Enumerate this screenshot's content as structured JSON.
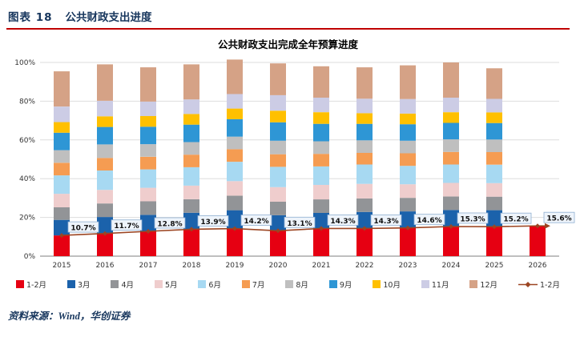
{
  "header": {
    "figure_label": "图表 18",
    "title": "公共财政支出进度"
  },
  "footer": {
    "source": "资料来源：Wind，华创证券"
  },
  "colors": {
    "header_text": "#17365d",
    "header_rule": "#c00000",
    "label_box_fill": "#eef4fb",
    "label_box_border": "#8fafd1"
  },
  "chart_data": {
    "type": "bar",
    "stacked": true,
    "title": "公共财政支出完成全年预算进度",
    "categories": [
      "2015",
      "2016",
      "2017",
      "2018",
      "2019",
      "2020",
      "2021",
      "2022",
      "2023",
      "2024",
      "2025",
      "2026"
    ],
    "series": [
      {
        "name": "1-2月",
        "color": "#e60012",
        "values": [
          10.7,
          11.7,
          12.8,
          13.9,
          14.2,
          13.1,
          14.3,
          14.3,
          14.6,
          15.3,
          15.2,
          15.6
        ]
      },
      {
        "name": "3月",
        "color": "#1b62ab",
        "values": [
          8.0,
          8.5,
          8.5,
          8.5,
          9.5,
          8.0,
          8.0,
          8.5,
          8.5,
          8.5,
          8.5,
          0
        ]
      },
      {
        "name": "4月",
        "color": "#929497",
        "values": [
          6.5,
          7.0,
          7.0,
          7.0,
          7.5,
          7.0,
          7.0,
          7.0,
          7.0,
          7.0,
          7.0,
          0
        ]
      },
      {
        "name": "5月",
        "color": "#efcdcd",
        "values": [
          7.0,
          7.0,
          7.0,
          7.0,
          7.5,
          7.5,
          7.5,
          7.5,
          7.0,
          7.0,
          7.0,
          0
        ]
      },
      {
        "name": "6月",
        "color": "#a7d9f2",
        "values": [
          9.5,
          10.0,
          9.5,
          9.5,
          10.0,
          10.5,
          9.5,
          10.0,
          9.5,
          9.5,
          9.5,
          0
        ]
      },
      {
        "name": "7月",
        "color": "#f59c52",
        "values": [
          6.5,
          6.5,
          6.5,
          6.5,
          6.5,
          6.5,
          6.5,
          6.0,
          6.5,
          6.5,
          6.5,
          0
        ]
      },
      {
        "name": "8月",
        "color": "#bfbfbf",
        "values": [
          6.5,
          7.0,
          6.5,
          6.5,
          6.5,
          7.0,
          6.5,
          6.5,
          6.5,
          6.5,
          6.5,
          0
        ]
      },
      {
        "name": "9月",
        "color": "#2e96d5",
        "values": [
          9.0,
          9.0,
          9.0,
          9.0,
          9.0,
          9.5,
          9.0,
          8.5,
          8.5,
          8.5,
          8.5,
          0
        ]
      },
      {
        "name": "10月",
        "color": "#ffc000",
        "values": [
          5.5,
          5.5,
          5.5,
          5.5,
          5.5,
          6.0,
          6.0,
          5.5,
          5.5,
          5.5,
          5.5,
          0
        ]
      },
      {
        "name": "11月",
        "color": "#cccce5",
        "values": [
          8.0,
          8.0,
          7.5,
          7.5,
          7.5,
          8.0,
          7.5,
          7.5,
          7.5,
          7.5,
          7.0,
          0
        ]
      },
      {
        "name": "12月",
        "color": "#d5a286",
        "values": [
          18.2,
          18.8,
          17.7,
          18.1,
          17.8,
          16.4,
          16.2,
          16.2,
          17.4,
          18.2,
          15.8,
          0
        ]
      }
    ],
    "line": {
      "name": "1-2月",
      "color": "#9c4522",
      "values": [
        10.7,
        11.7,
        12.8,
        13.9,
        14.2,
        13.1,
        14.3,
        14.3,
        14.6,
        15.3,
        15.2,
        15.6
      ],
      "labels": [
        "10.7%",
        "11.7%",
        "12.8%",
        "13.9%",
        "14.2%",
        "13.1%",
        "14.3%",
        "14.3%",
        "14.6%",
        "15.3%",
        "15.2%",
        "15.6%"
      ]
    },
    "y_ticks": [
      {
        "v": 0,
        "label": "0%"
      },
      {
        "v": 20,
        "label": "20%"
      },
      {
        "v": 40,
        "label": "40%"
      },
      {
        "v": 60,
        "label": "60%"
      },
      {
        "v": 80,
        "label": "80%"
      },
      {
        "v": 100,
        "label": "100%"
      }
    ],
    "ylim": [
      0,
      100
    ],
    "grid": true,
    "legend_position": "bottom"
  }
}
